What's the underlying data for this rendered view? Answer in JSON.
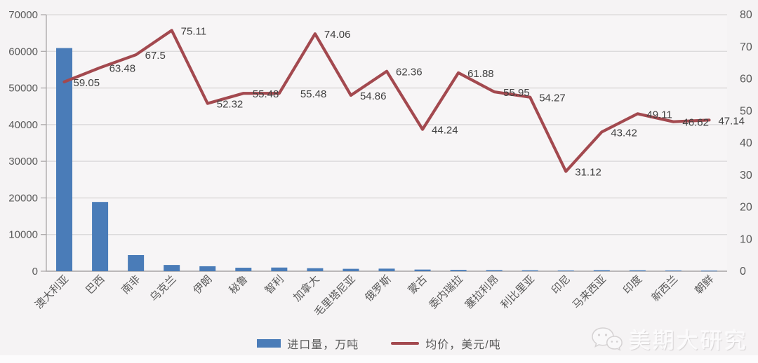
{
  "chart_data": {
    "type": "combo",
    "categories": [
      "澳大利亚",
      "巴西",
      "南非",
      "乌克兰",
      "伊朗",
      "秘鲁",
      "智利",
      "加拿大",
      "毛里塔尼亚",
      "俄罗斯",
      "蒙古",
      "委内瑞拉",
      "塞拉利昂",
      "利比里亚",
      "印尼",
      "马来西亚",
      "印度",
      "新西兰",
      "朝鲜"
    ],
    "series": [
      {
        "name": "进口量，万吨",
        "type": "bar",
        "axis": "left",
        "color": "#4a7cb8",
        "values": [
          60900,
          18900,
          4400,
          1700,
          1350,
          950,
          1000,
          820,
          650,
          700,
          450,
          350,
          300,
          250,
          200,
          280,
          250,
          200,
          150
        ]
      },
      {
        "name": "均价，美元/吨",
        "type": "line",
        "axis": "right",
        "color": "#a3494f",
        "values": [
          59.05,
          63.48,
          67.5,
          75.11,
          52.32,
          55.48,
          55.48,
          74.06,
          54.86,
          62.36,
          44.24,
          61.88,
          55.95,
          54.27,
          31.12,
          43.42,
          49.11,
          46.62,
          47.14
        ],
        "data_labels": [
          "59.05",
          "63.48",
          "67.5",
          "75.11",
          "52.32",
          "55.48",
          "55.48",
          "74.06",
          "54.86",
          "62.36",
          "44.24",
          "61.88",
          "55.95",
          "54.27",
          "31.12",
          "43.42",
          "49.11",
          "46.62",
          "47.14"
        ]
      }
    ],
    "left_axis": {
      "min": 0,
      "max": 70000,
      "step": 10000,
      "ticks": [
        "70000",
        "60000",
        "50000",
        "40000",
        "30000",
        "20000",
        "10000",
        "0"
      ]
    },
    "right_axis": {
      "min": 0,
      "max": 80,
      "step": 10,
      "ticks": [
        "80",
        "70",
        "60",
        "50",
        "40",
        "30",
        "20",
        "10",
        "0"
      ]
    },
    "grid": true,
    "legend_position": "bottom",
    "title": "",
    "xlabel": "",
    "ylabel_left": "进口量，万吨",
    "ylabel_right": "均价，美元/吨"
  },
  "watermark": {
    "text": "美期大研究"
  },
  "colors": {
    "bar": "#4a7cb8",
    "line": "#a3494f",
    "background": "#f5f3f4",
    "gridline": "#d9d7d8",
    "axis_line": "#a8a5a6",
    "axis_text": "#595959",
    "data_label_text": "#404040"
  }
}
